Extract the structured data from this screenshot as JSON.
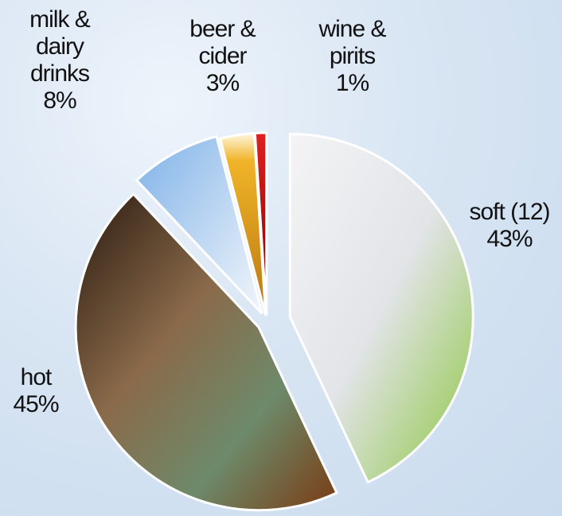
{
  "chart_data": {
    "type": "pie",
    "categories": [
      "soft (12)",
      "hot",
      "milk & dairy drinks",
      "beer & cider",
      "wine & pirits"
    ],
    "values": [
      43,
      45,
      8,
      3,
      1
    ],
    "value_labels": [
      "43%",
      "45%",
      "8%",
      "3%",
      "1%"
    ],
    "colors": [
      "#e2e4e8",
      "#6b4a32",
      "#a9cbef",
      "#e8a524",
      "#c00000"
    ]
  }
}
